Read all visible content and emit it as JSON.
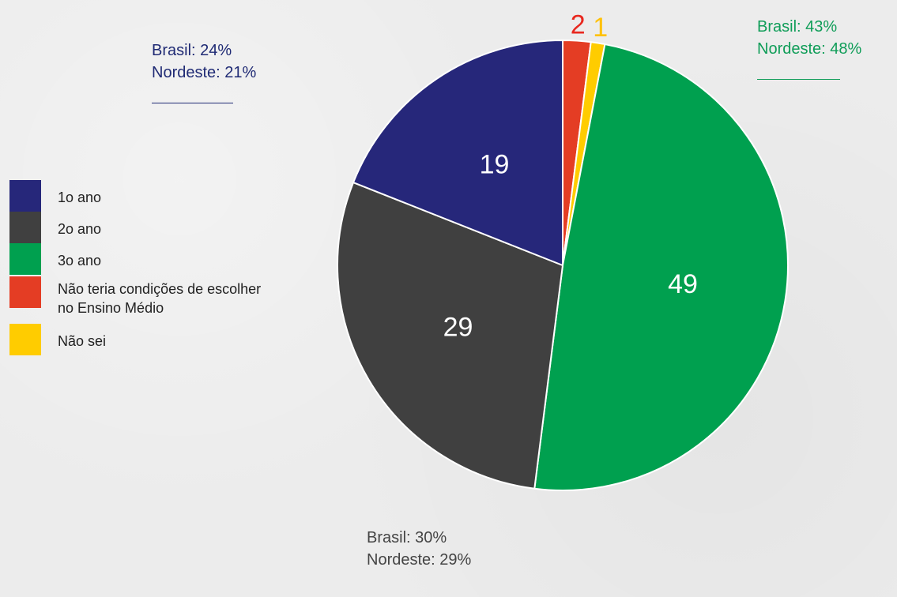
{
  "colors": {
    "1o_ano": "#26277a",
    "2o_ano": "#404040",
    "3o_ano": "#00a04f",
    "nao_teria": "#e43d24",
    "nao_sei": "#ffcc00",
    "label_inside": "#ffffff",
    "label_outside_red": "#e8281f",
    "label_outside_yellow": "#ffc107"
  },
  "annotations": {
    "primeiro": {
      "line1": "Brasil: 24%",
      "line2": "Nordeste: 21%"
    },
    "terceiro": {
      "line1": "Brasil: 43%",
      "line2": "Nordeste: 48%"
    },
    "segundo": {
      "line1": "Brasil: 30%",
      "line2": "Nordeste: 29%"
    }
  },
  "chart_data": {
    "type": "pie",
    "title": "",
    "legend_position": "left",
    "slices": [
      {
        "label": "Não teria condições de escolher no Ensino Médio",
        "value": 2,
        "color": "#e43d24",
        "display": "2"
      },
      {
        "label": "Não sei",
        "value": 1,
        "color": "#ffcc00",
        "display": "1"
      },
      {
        "label": "3o ano",
        "value": 49,
        "color": "#00a04f",
        "display": "49"
      },
      {
        "label": "2o ano",
        "value": 29,
        "color": "#404040",
        "display": "29"
      },
      {
        "label": "1o ano",
        "value": 19,
        "color": "#26277a",
        "display": "19"
      }
    ],
    "legend": [
      "1o ano",
      "2o ano",
      "3o ano",
      "Não teria condições de escolher no Ensino Médio",
      "Não sei"
    ]
  }
}
